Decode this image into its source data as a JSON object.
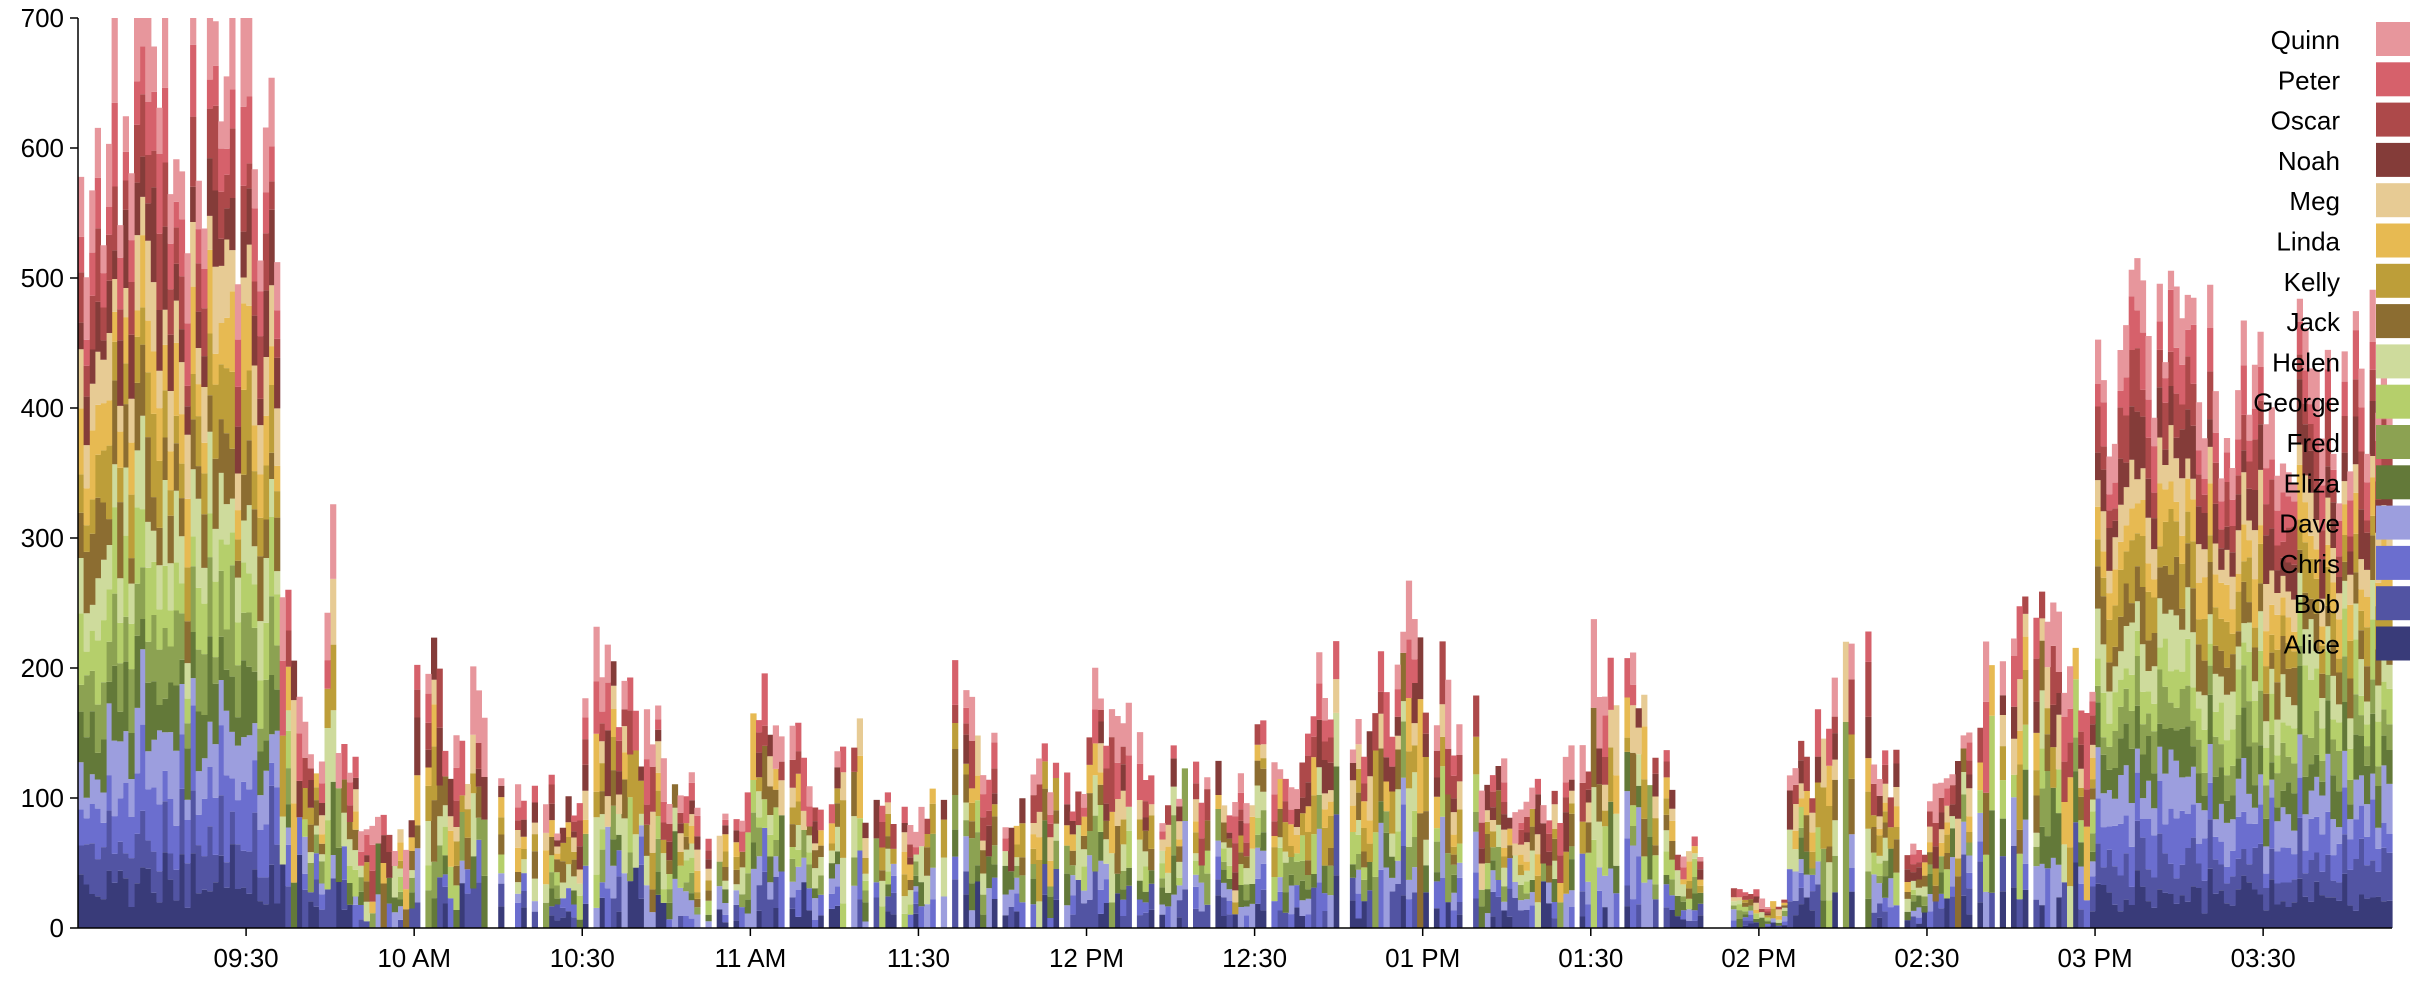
{
  "chart_data": {
    "type": "area",
    "stacked": true,
    "step": true,
    "ylim": [
      0,
      700
    ],
    "y_ticks": [
      "0",
      "100",
      "200",
      "300",
      "400",
      "500",
      "600",
      "700"
    ],
    "x_ticks": [
      "09:30",
      "10 AM",
      "10:30",
      "11 AM",
      "11:30",
      "12 PM",
      "12:30",
      "01 PM",
      "01:30",
      "02 PM",
      "02:30",
      "03 PM",
      "03:30"
    ],
    "x_tick_minutes": [
      570,
      600,
      630,
      660,
      690,
      720,
      750,
      780,
      810,
      840,
      870,
      900,
      930
    ],
    "x_range_minutes": [
      540,
      953
    ],
    "legend_position": "top-right",
    "series": [
      {
        "name": "Alice",
        "color": "#393b79"
      },
      {
        "name": "Bob",
        "color": "#5254a3"
      },
      {
        "name": "Chris",
        "color": "#6b6ecf"
      },
      {
        "name": "Dave",
        "color": "#9c9ede"
      },
      {
        "name": "Eliza",
        "color": "#637939"
      },
      {
        "name": "Fred",
        "color": "#8ca252"
      },
      {
        "name": "George",
        "color": "#b5cf6b"
      },
      {
        "name": "Helen",
        "color": "#cedb9c"
      },
      {
        "name": "Jack",
        "color": "#8c6d31"
      },
      {
        "name": "Kelly",
        "color": "#bd9e39"
      },
      {
        "name": "Linda",
        "color": "#e7ba52"
      },
      {
        "name": "Meg",
        "color": "#e7cb94"
      },
      {
        "name": "Noah",
        "color": "#843c39"
      },
      {
        "name": "Oscar",
        "color": "#ad494a"
      },
      {
        "name": "Peter",
        "color": "#d6616b"
      },
      {
        "name": "Quinn",
        "color": "#e7969c"
      }
    ],
    "totals_outline": [
      [
        540,
        580
      ],
      [
        545,
        630
      ],
      [
        550,
        660
      ],
      [
        555,
        620
      ],
      [
        560,
        640
      ],
      [
        565,
        650
      ],
      [
        568,
        610
      ],
      [
        570,
        690
      ],
      [
        572,
        620
      ],
      [
        574,
        600
      ],
      [
        576,
        300
      ],
      [
        578,
        180
      ],
      [
        580,
        160
      ],
      [
        582,
        120
      ],
      [
        584,
        290
      ],
      [
        586,
        140
      ],
      [
        590,
        90
      ],
      [
        595,
        70
      ],
      [
        600,
        190
      ],
      [
        605,
        130
      ],
      [
        610,
        170
      ],
      [
        615,
        110
      ],
      [
        620,
        100
      ],
      [
        625,
        90
      ],
      [
        630,
        220
      ],
      [
        635,
        190
      ],
      [
        640,
        150
      ],
      [
        645,
        110
      ],
      [
        650,
        80
      ],
      [
        655,
        90
      ],
      [
        660,
        170
      ],
      [
        665,
        140
      ],
      [
        670,
        110
      ],
      [
        675,
        160
      ],
      [
        680,
        90
      ],
      [
        685,
        80
      ],
      [
        690,
        90
      ],
      [
        695,
        200
      ],
      [
        700,
        130
      ],
      [
        705,
        90
      ],
      [
        710,
        120
      ],
      [
        715,
        100
      ],
      [
        720,
        170
      ],
      [
        725,
        150
      ],
      [
        730,
        100
      ],
      [
        735,
        120
      ],
      [
        740,
        110
      ],
      [
        745,
        100
      ],
      [
        750,
        140
      ],
      [
        755,
        130
      ],
      [
        760,
        190
      ],
      [
        765,
        140
      ],
      [
        770,
        180
      ],
      [
        775,
        240
      ],
      [
        780,
        190
      ],
      [
        785,
        150
      ],
      [
        790,
        110
      ],
      [
        795,
        90
      ],
      [
        800,
        100
      ],
      [
        805,
        140
      ],
      [
        810,
        200
      ],
      [
        815,
        180
      ],
      [
        820,
        120
      ],
      [
        825,
        60
      ],
      [
        830,
        0
      ],
      [
        835,
        30
      ],
      [
        840,
        20
      ],
      [
        845,
        120
      ],
      [
        850,
        170
      ],
      [
        855,
        200
      ],
      [
        860,
        120
      ],
      [
        865,
        70
      ],
      [
        870,
        100
      ],
      [
        875,
        160
      ],
      [
        880,
        210
      ],
      [
        885,
        250
      ],
      [
        890,
        220
      ],
      [
        895,
        200
      ],
      [
        899,
        190
      ],
      [
        900,
        430
      ],
      [
        905,
        460
      ],
      [
        910,
        450
      ],
      [
        915,
        440
      ],
      [
        920,
        430
      ],
      [
        925,
        420
      ],
      [
        930,
        410
      ],
      [
        935,
        420
      ],
      [
        940,
        400
      ],
      [
        945,
        410
      ],
      [
        950,
        410
      ],
      [
        953,
        410
      ]
    ]
  }
}
